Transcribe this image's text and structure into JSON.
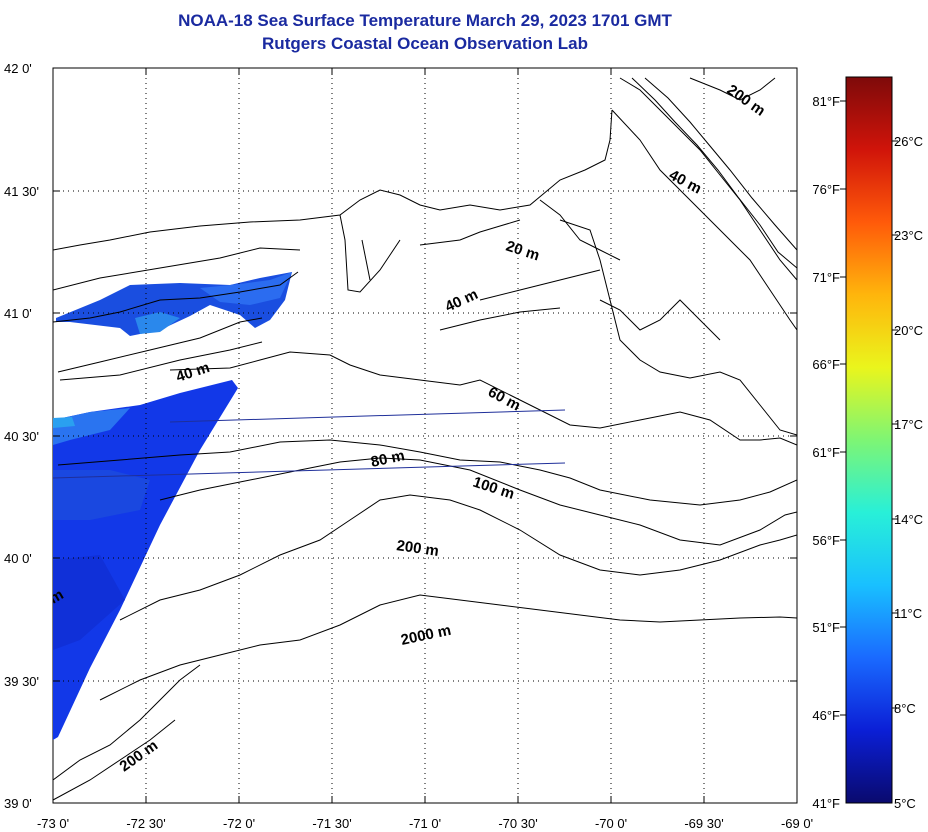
{
  "title": {
    "line1": "NOAA-18 Sea Surface Temperature March 29, 2023 1701 GMT",
    "line2": "Rutgers Coastal Ocean Observation Lab"
  },
  "map": {
    "lat_labels": [
      "42 0'",
      "41 30'",
      "41 0'",
      "40 30'",
      "40 0'",
      "39 30'",
      "39 0'"
    ],
    "lon_labels": [
      "-73 0'",
      "-72 30'",
      "-72 0'",
      "-71 30'",
      "-71 0'",
      "-70 30'",
      "-70 0'",
      "-69 30'",
      "-69 0'"
    ],
    "depth_labels": [
      "200 m",
      "40 m",
      "20 m",
      "40 m",
      "40 m",
      "60 m",
      "80 m",
      "100 m",
      "200 m",
      "2000 m",
      "200 m",
      "m"
    ]
  },
  "colorbar": {
    "celsius_labels": [
      "26°C",
      "23°C",
      "20°C",
      "17°C",
      "14°C",
      "11°C",
      "8°C",
      "5°C"
    ],
    "fahrenheit_labels": [
      "81°F",
      "76°F",
      "71°F",
      "66°F",
      "61°F",
      "56°F",
      "51°F",
      "46°F",
      "41°F"
    ],
    "colors": [
      "#0a0a6e",
      "#0b1fd6",
      "#1a6aff",
      "#19c0ff",
      "#28f0d8",
      "#7ef574",
      "#eaf51c",
      "#ffb50c",
      "#ff5a0a",
      "#d0140a",
      "#7e0a0a"
    ]
  }
}
